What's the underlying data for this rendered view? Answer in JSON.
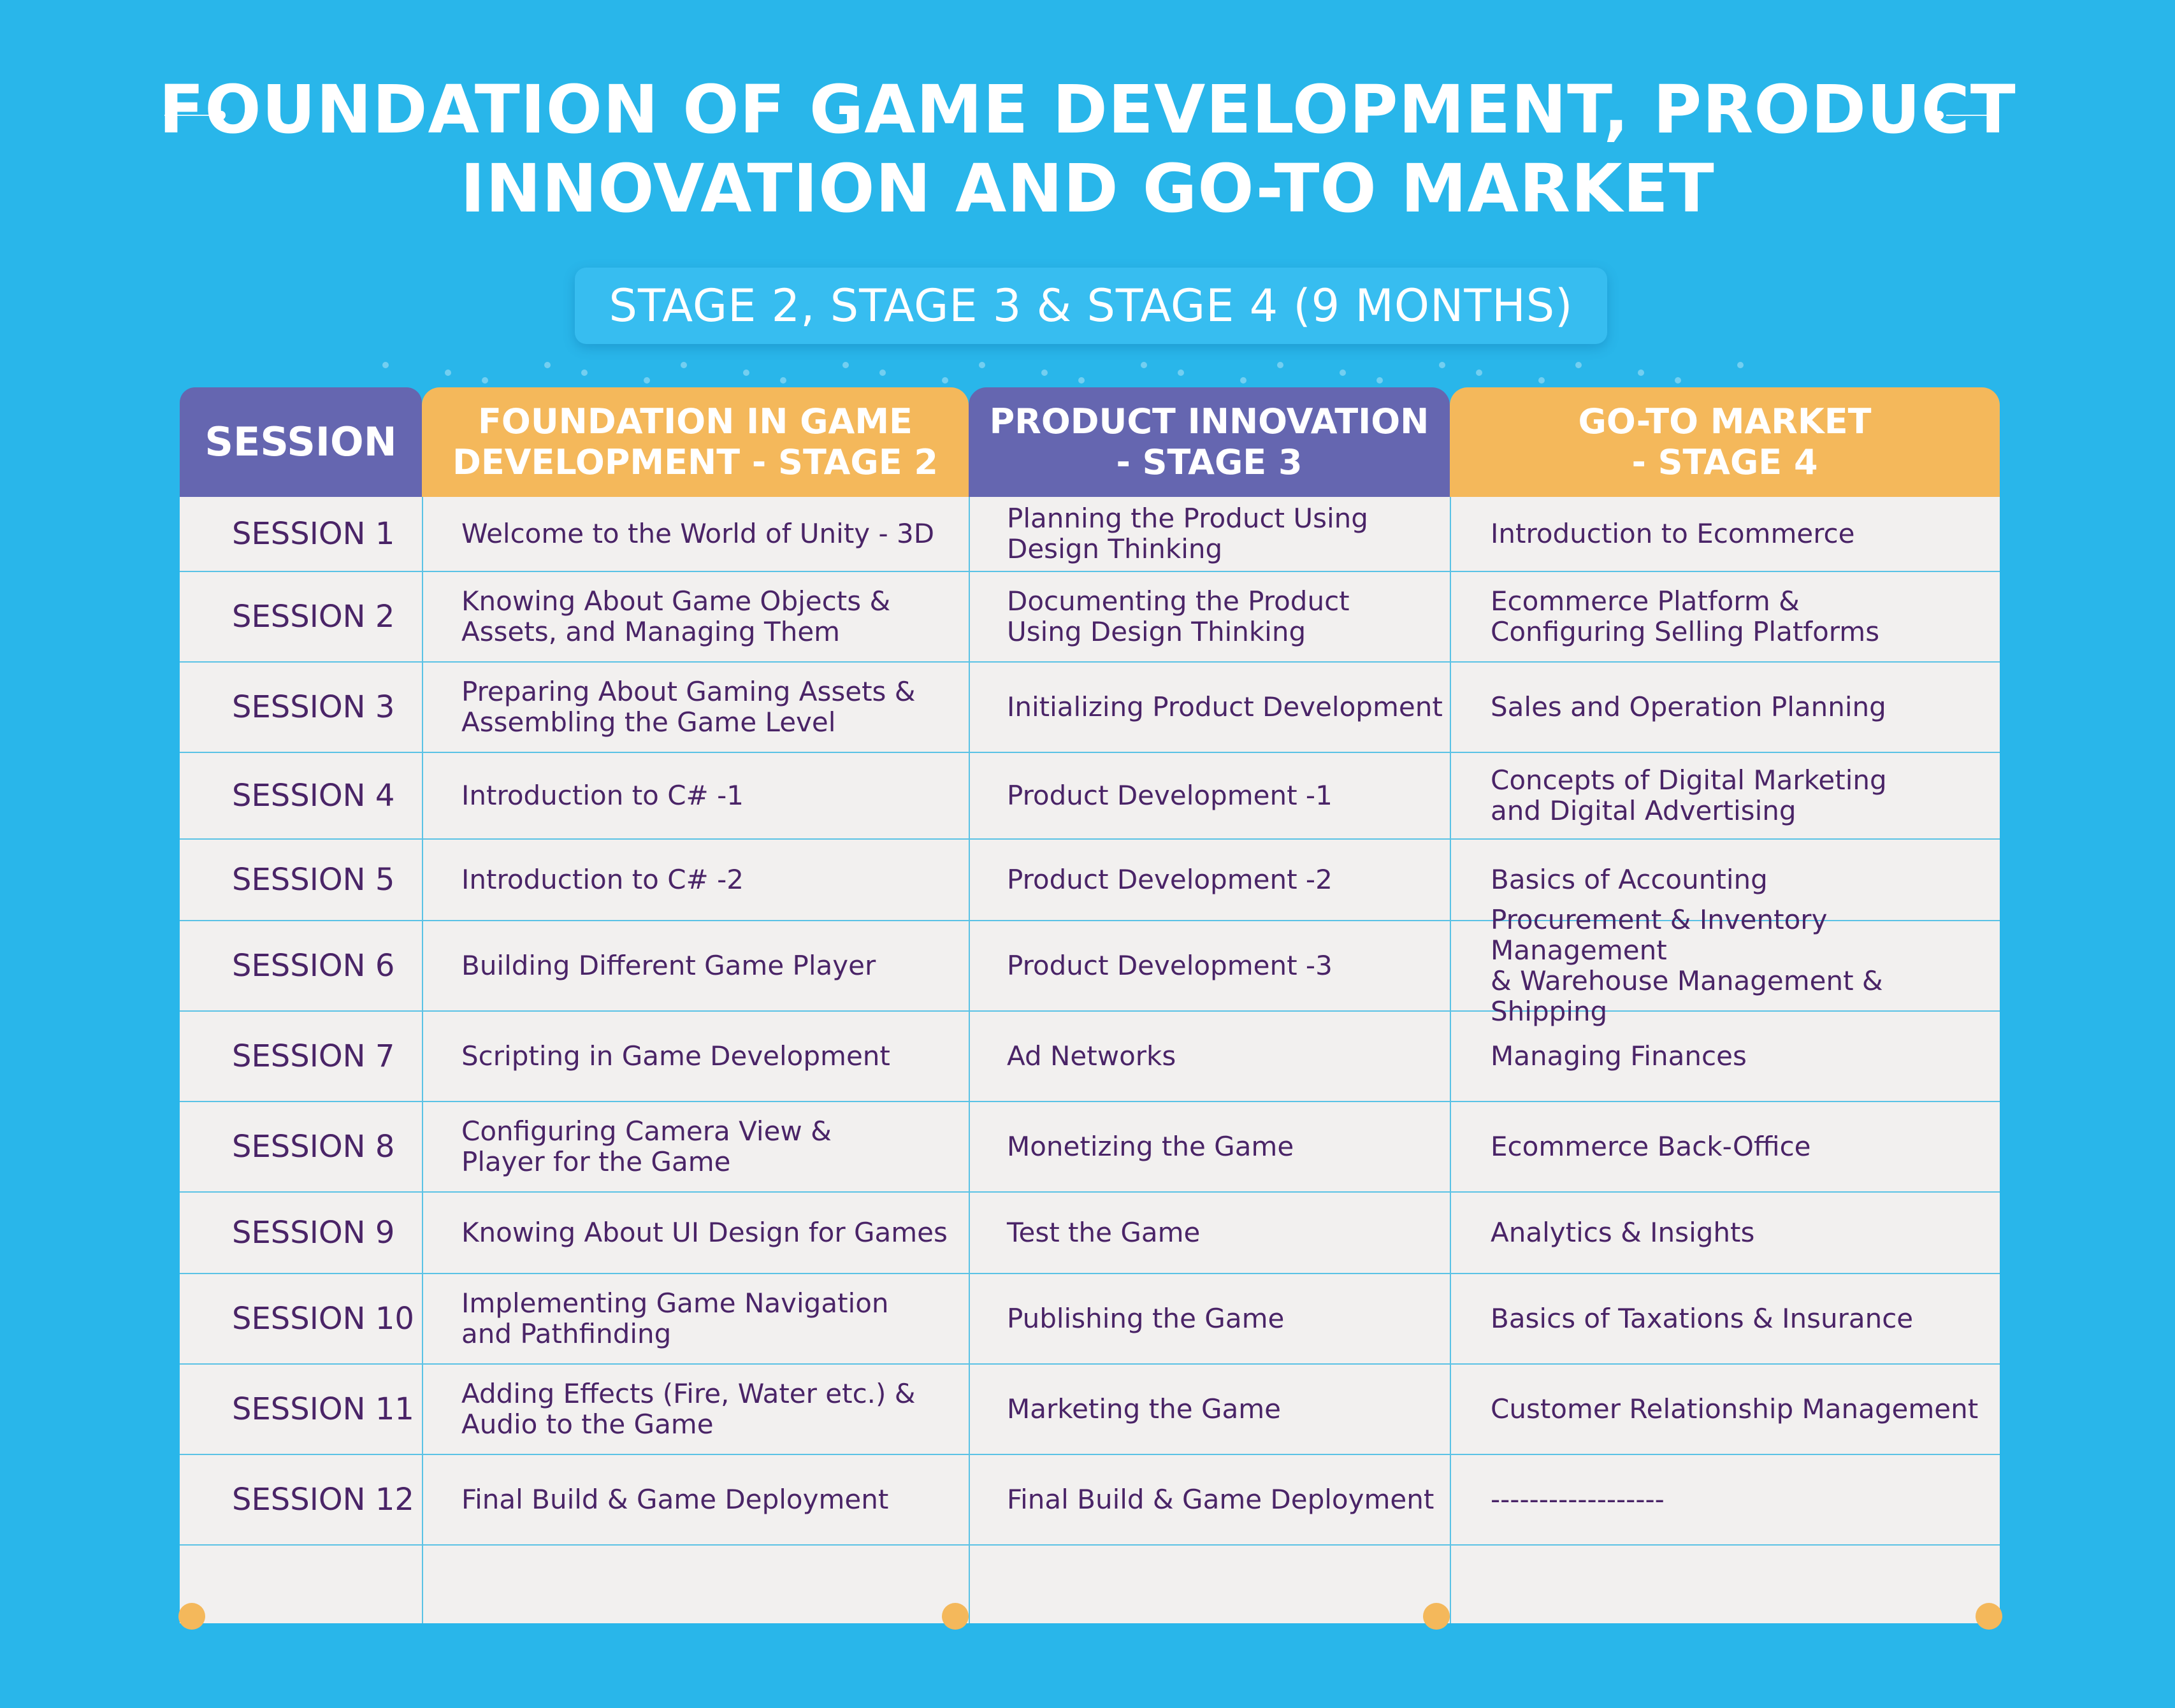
{
  "title": {
    "line1": "FOUNDATION OF GAME DEVELOPMENT, PRODUCT",
    "line2": "INNOVATION AND GO-TO MARKET"
  },
  "subtitle": "STAGE 2, STAGE 3 & STAGE 4 (9 MONTHS)",
  "colors": {
    "background": "#29b6ea",
    "purple_header": "#6566b0",
    "orange_header": "#f4b85b",
    "body_text": "#4a2467",
    "cell_bg": "#f2f0ef"
  },
  "table": {
    "headers": {
      "session": "SESSION",
      "stage2": "FOUNDATION IN GAME\nDEVELOPMENT - STAGE 2",
      "stage3": "PRODUCT INNOVATION\n- STAGE 3",
      "stage4": "GO-TO MARKET\n- STAGE 4"
    },
    "rows": [
      {
        "session": "SESSION 1",
        "stage2": "Welcome to the World of Unity - 3D",
        "stage3": "Planning the Product Using\nDesign Thinking",
        "stage4": "Introduction to Ecommerce"
      },
      {
        "session": "SESSION 2",
        "stage2": "Knowing About Game Objects &\nAssets, and Managing Them",
        "stage3": "Documenting the Product\nUsing Design Thinking",
        "stage4": "Ecommerce Platform &\nConfiguring Selling Platforms"
      },
      {
        "session": "SESSION 3",
        "stage2": "Preparing About Gaming Assets &\nAssembling the Game Level",
        "stage3": "Initializing Product Development",
        "stage4": "Sales and Operation Planning"
      },
      {
        "session": "SESSION 4",
        "stage2": "Introduction to C# -1",
        "stage3": "Product Development -1",
        "stage4": "Concepts of Digital Marketing\nand Digital Advertising"
      },
      {
        "session": "SESSION 5",
        "stage2": "Introduction to C# -2",
        "stage3": "Product Development -2",
        "stage4": "Basics of Accounting"
      },
      {
        "session": "SESSION 6",
        "stage2": "Building Different Game Player",
        "stage3": "Product Development -3",
        "stage4": "Procurement & Inventory Management\n& Warehouse Management & Shipping"
      },
      {
        "session": "SESSION 7",
        "stage2": "Scripting in Game Development",
        "stage3": "Ad Networks",
        "stage4": "Managing Finances"
      },
      {
        "session": "SESSION 8",
        "stage2": "Configuring Camera View &\nPlayer for the Game",
        "stage3": "Monetizing the Game",
        "stage4": "Ecommerce Back-Office"
      },
      {
        "session": "SESSION 9",
        "stage2": "Knowing About UI Design for Games",
        "stage3": "Test the Game",
        "stage4": "Analytics & Insights"
      },
      {
        "session": "SESSION 10",
        "stage2": "Implementing Game Navigation\nand Pathfinding",
        "stage3": "Publishing the Game",
        "stage4": "Basics of Taxations & Insurance"
      },
      {
        "session": "SESSION 11",
        "stage2": "Adding Effects (Fire, Water etc.) &\nAudio to the Game",
        "stage3": "Marketing the Game",
        "stage4": "Customer Relationship Management"
      },
      {
        "session": "SESSION 12",
        "stage2": "Final Build & Game Deployment",
        "stage3": "Final Build & Game Deployment",
        "stage4": "   ------------------"
      }
    ]
  }
}
